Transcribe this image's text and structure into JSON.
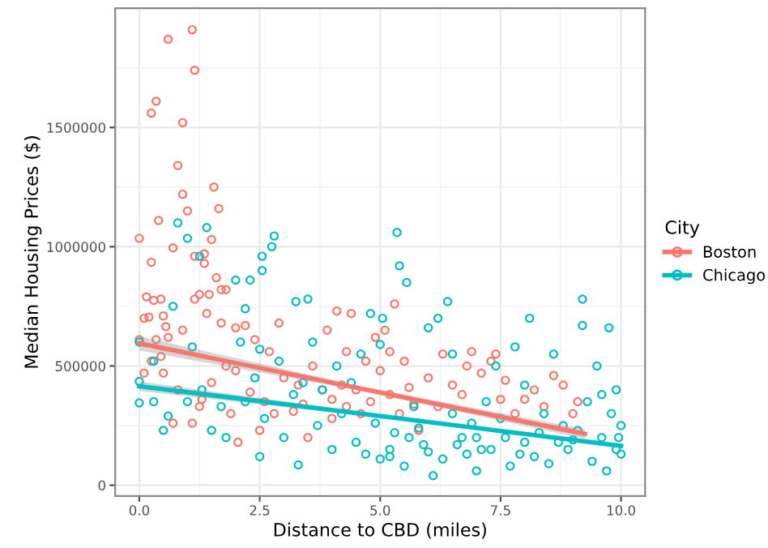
{
  "chart_data": {
    "type": "scatter",
    "xlabel": "Distance to CBD (miles)",
    "ylabel": "Median Housing Prices ($)",
    "legend_title": "City",
    "legend": "right",
    "grid": true,
    "marker": "circle",
    "xlim": [
      -0.5,
      10.5
    ],
    "xticks": [
      {
        "value": 0,
        "label": "0.0"
      },
      2.5,
      {
        "value": 5,
        "label": "5.0"
      },
      7.5,
      {
        "value": 10,
        "label": "10.0"
      }
    ],
    "ylim": [
      -45000,
      2000000
    ],
    "yticks": [
      0,
      500000,
      1000000,
      1500000
    ],
    "series": [
      {
        "name": "Boston",
        "color": "#f8766d",
        "x": [
          0.6,
          1.1,
          1.15,
          0.35,
          0.25,
          0.9,
          0.8,
          1.55,
          0.9,
          1.65,
          1.0,
          0.4,
          0,
          1.5,
          0.7,
          1.35,
          0.25,
          1.15,
          1.35,
          1.6,
          1.25,
          1.7,
          0.15,
          0.3,
          0.45,
          1.45,
          1.8,
          0.1,
          0.2,
          0.5,
          0.55,
          0.9,
          1.15,
          1.4,
          1.7,
          2.0,
          2.2,
          2.4,
          0,
          0.35,
          0.6,
          0.1,
          0.25,
          0.45,
          0.5,
          0.7,
          1.1,
          1.25,
          1.5,
          1.8,
          2.0,
          2.05,
          2.3,
          2.5,
          2.6,
          2.7,
          2.9,
          3.0,
          3.2,
          3.4,
          3.6,
          3.8,
          3.9,
          4.0,
          4.1,
          4.2,
          4.3,
          4.4,
          4.5,
          4.6,
          4.7,
          4.9,
          5.0,
          5.1,
          5.2,
          5.3,
          5.2,
          5.4,
          5.5,
          5.7,
          5.8,
          6.0,
          6.3,
          6.5,
          6.7,
          6.8,
          6.9,
          7.1,
          7.3,
          7.4,
          7.5,
          7.6,
          7.8,
          8.0,
          8.2,
          8.4,
          8.6,
          8.8,
          9.0,
          9.1,
          3.5,
          4.0,
          4.3,
          3.3,
          2.8,
          1.9,
          1.3,
          0.8,
          6.2,
          5.6,
          4.8
        ],
        "values": [
          1870000,
          1910000,
          1740000,
          1610000,
          1560000,
          1520000,
          1340000,
          1250000,
          1220000,
          1160000,
          1150000,
          1110000,
          1035000,
          1030000,
          995000,
          970000,
          935000,
          960000,
          930000,
          870000,
          800000,
          820000,
          790000,
          775000,
          780000,
          800000,
          820000,
          700000,
          705000,
          710000,
          665000,
          650000,
          780000,
          720000,
          680000,
          660000,
          670000,
          610000,
          610000,
          610000,
          620000,
          470000,
          520000,
          540000,
          470000,
          260000,
          260000,
          330000,
          430000,
          500000,
          480000,
          180000,
          390000,
          230000,
          350000,
          560000,
          680000,
          450000,
          310000,
          340000,
          500000,
          400000,
          650000,
          360000,
          730000,
          420000,
          560000,
          720000,
          400000,
          300000,
          520000,
          620000,
          480000,
          650000,
          560000,
          760000,
          380000,
          300000,
          520000,
          340000,
          230000,
          450000,
          550000,
          420000,
          380000,
          500000,
          560000,
          470000,
          520000,
          550000,
          360000,
          440000,
          300000,
          360000,
          400000,
          330000,
          460000,
          420000,
          300000,
          350000,
          200000,
          280000,
          330000,
          420000,
          300000,
          300000,
          360000,
          400000,
          330000,
          410000,
          350000
        ]
      },
      {
        "name": "Chicago",
        "color": "#00bfc4",
        "x": [
          0,
          0,
          0,
          0.3,
          0.5,
          0.7,
          0.8,
          1.0,
          1.1,
          1.4,
          1.25,
          2.0,
          2.3,
          2.2,
          2.55,
          2.55,
          2.75,
          2.8,
          2.5,
          3.25,
          3.5,
          3.3,
          2.5,
          1.5,
          1.8,
          2.2,
          3.0,
          3.4,
          3.8,
          4.0,
          4.2,
          4.6,
          4.8,
          5.0,
          5.05,
          5.35,
          5.4,
          5.55,
          5.2,
          5.5,
          5.8,
          6.0,
          6.2,
          6.4,
          6.5,
          6.8,
          7.0,
          7.0,
          7.2,
          7.4,
          7.6,
          7.8,
          8.1,
          8.2,
          8.4,
          8.6,
          8.8,
          9.0,
          9.2,
          9.2,
          9.4,
          9.5,
          9.6,
          9.75,
          9.9,
          10.0,
          9.8,
          10.0,
          9.9,
          9.7,
          9.3,
          8.9,
          8.5,
          8.0,
          7.7,
          7.5,
          7.3,
          6.9,
          6.6,
          6.3,
          6.1,
          5.9,
          5.7,
          5.3,
          5.0,
          4.9,
          4.5,
          4.4,
          4.1,
          3.7,
          3.6,
          3.2,
          2.9,
          2.6,
          2.4,
          2.1,
          1.7,
          1.3,
          1.0,
          0.6,
          0.3,
          9.95,
          9.6,
          9.1,
          8.7,
          8.3,
          7.9,
          7.1,
          6.7,
          6.0,
          5.6,
          5.2,
          4.7,
          8.0,
          6.5
        ],
        "values": [
          600000,
          435000,
          345000,
          350000,
          230000,
          750000,
          1100000,
          1035000,
          580000,
          1080000,
          960000,
          860000,
          860000,
          740000,
          960000,
          900000,
          1000000,
          1045000,
          570000,
          770000,
          780000,
          85000,
          120000,
          230000,
          200000,
          350000,
          200000,
          430000,
          400000,
          150000,
          300000,
          550000,
          720000,
          590000,
          700000,
          1060000,
          920000,
          850000,
          150000,
          80000,
          240000,
          660000,
          700000,
          770000,
          300000,
          130000,
          200000,
          60000,
          350000,
          500000,
          200000,
          580000,
          700000,
          120000,
          300000,
          550000,
          250000,
          190000,
          780000,
          670000,
          100000,
          500000,
          200000,
          660000,
          150000,
          250000,
          300000,
          130000,
          400000,
          60000,
          350000,
          150000,
          90000,
          180000,
          80000,
          280000,
          150000,
          260000,
          170000,
          110000,
          40000,
          170000,
          330000,
          220000,
          110000,
          260000,
          180000,
          430000,
          500000,
          250000,
          600000,
          380000,
          520000,
          280000,
          450000,
          600000,
          330000,
          400000,
          350000,
          290000,
          520000,
          200000,
          380000,
          230000,
          180000,
          220000,
          130000,
          150000,
          200000,
          140000,
          200000,
          120000,
          130000,
          420000,
          550000
        ]
      },
      {
        "type": "line",
        "marker": "none",
        "color": "#f8766d",
        "x": [
          0,
          4.6,
          9.25
        ],
        "values": [
          595000,
          405000,
          215000
        ],
        "lower": [
          565000,
          395000,
          195000
        ],
        "upper": [
          625000,
          415000,
          235000
        ]
      },
      {
        "type": "line",
        "marker": "none",
        "color": "#00bfc4",
        "x": [
          0,
          5,
          10
        ],
        "values": [
          415000,
          290000,
          165000
        ],
        "lower": [
          395000,
          283000,
          155000
        ],
        "upper": [
          435000,
          297000,
          175000
        ]
      }
    ]
  }
}
